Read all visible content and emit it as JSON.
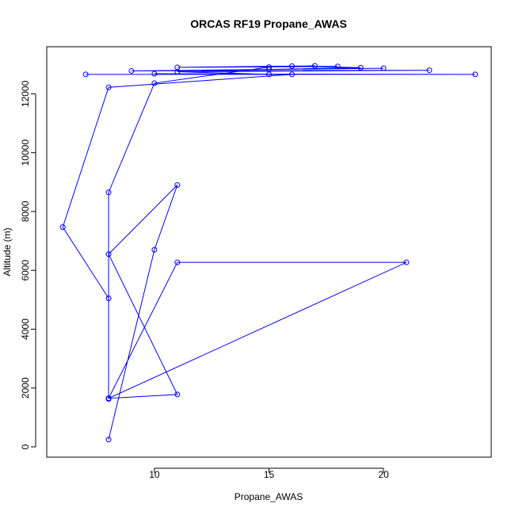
{
  "chart_data": {
    "type": "line",
    "title": "ORCAS RF19 Propane_AWAS",
    "xlabel": "Propane_AWAS",
    "ylabel": "Altitude (m)",
    "xlim": [
      5.3,
      24.7
    ],
    "ylim": [
      -350,
      13600
    ],
    "x_ticks": [
      10,
      15,
      20
    ],
    "y_ticks": [
      0,
      2000,
      4000,
      6000,
      8000,
      10000,
      12000
    ],
    "grid": false,
    "line_color": "#0000ff",
    "marker": "open-circle",
    "series": [
      {
        "points": [
          {
            "x": 8,
            "y": 250
          },
          {
            "x": 10,
            "y": 6700
          },
          {
            "x": 11,
            "y": 8900
          },
          {
            "x": 8,
            "y": 6550
          },
          {
            "x": 11,
            "y": 1780
          },
          {
            "x": 8,
            "y": 1650
          },
          {
            "x": 11,
            "y": 6270
          },
          {
            "x": 21,
            "y": 6270
          },
          {
            "x": 8,
            "y": 1650
          },
          {
            "x": 8,
            "y": 5050
          },
          {
            "x": 6,
            "y": 7470
          },
          {
            "x": 8,
            "y": 12220
          },
          {
            "x": 16,
            "y": 12660
          },
          {
            "x": 7,
            "y": 12660
          },
          {
            "x": 24,
            "y": 12660
          },
          {
            "x": 10,
            "y": 12680
          },
          {
            "x": 15,
            "y": 12660
          },
          {
            "x": 11,
            "y": 12750
          },
          {
            "x": 22,
            "y": 12800
          },
          {
            "x": 9,
            "y": 12780
          },
          {
            "x": 20,
            "y": 12870
          },
          {
            "x": 15,
            "y": 12830
          },
          {
            "x": 19,
            "y": 12890
          },
          {
            "x": 16,
            "y": 12940
          },
          {
            "x": 18,
            "y": 12930
          },
          {
            "x": 11,
            "y": 12900
          },
          {
            "x": 17,
            "y": 12950
          },
          {
            "x": 15,
            "y": 12910
          },
          {
            "x": 10,
            "y": 12360
          },
          {
            "x": 8,
            "y": 8650
          },
          {
            "x": 8,
            "y": 1630
          }
        ]
      }
    ]
  }
}
